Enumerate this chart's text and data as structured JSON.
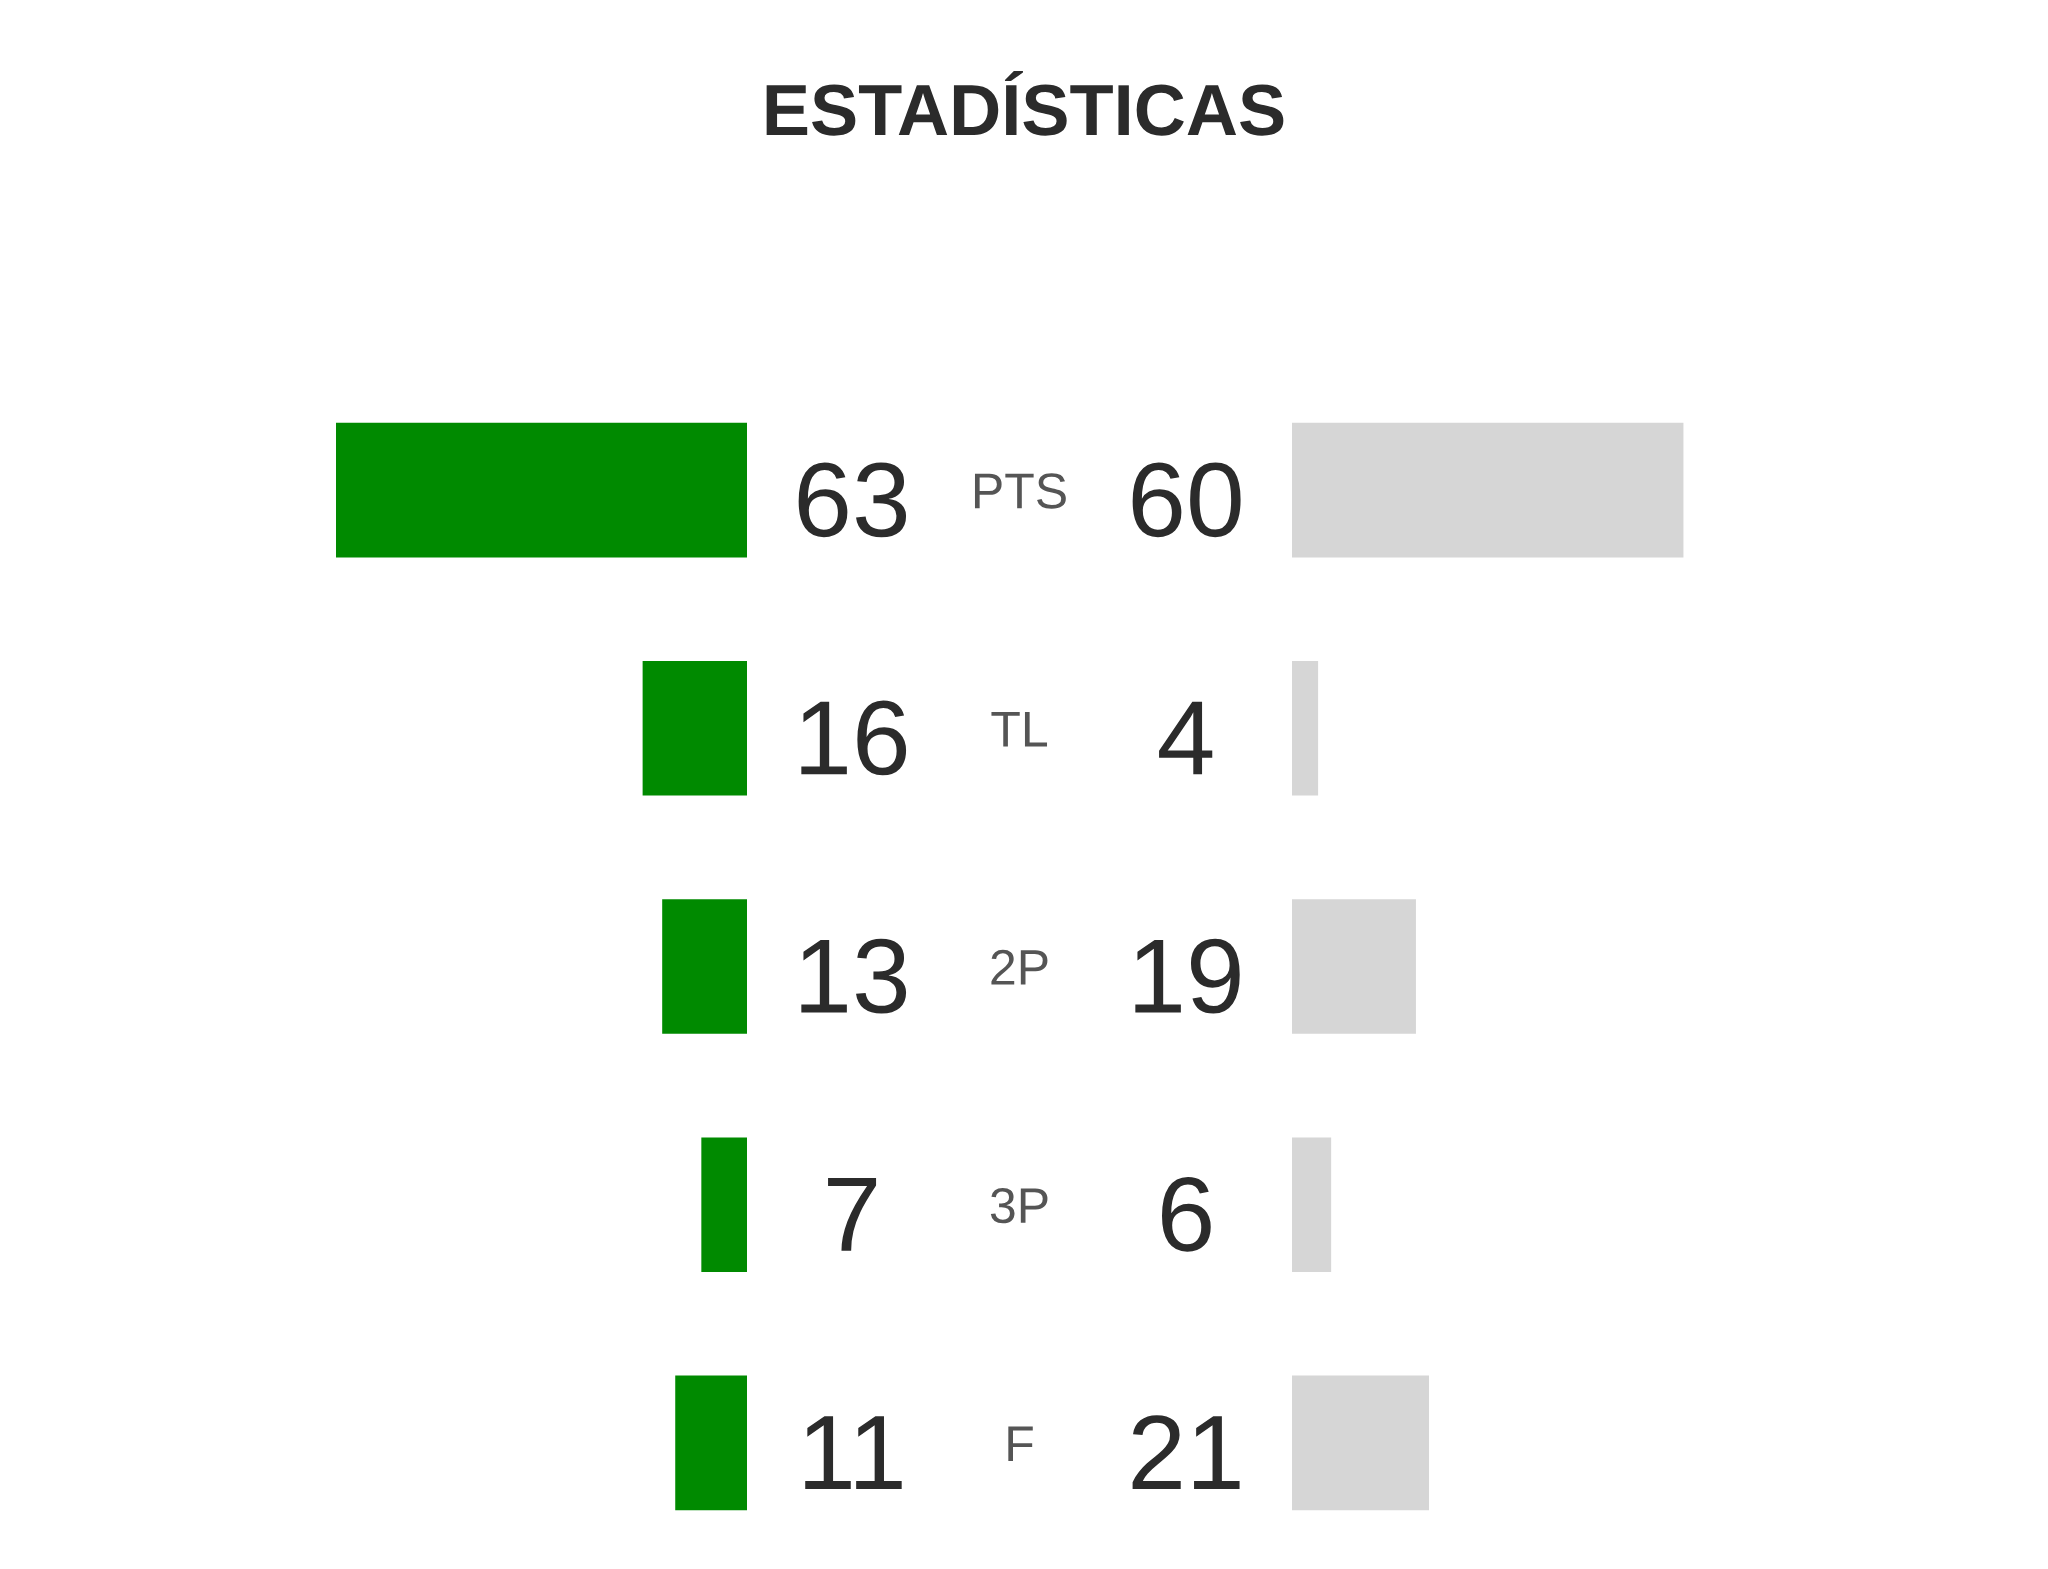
{
  "chart_data": [
    {
      "type": "bar",
      "title": "ESTADÍSTICAS",
      "orientation": "horizontal",
      "categories": [
        "PTS",
        "TL",
        "2P",
        "3P",
        "F"
      ],
      "values": [
        63,
        16,
        13,
        7,
        11
      ],
      "color": "#008a00",
      "data_labels": true,
      "tick_labels": "y"
    },
    {
      "type": "bar",
      "orientation": "horizontal",
      "categories": [
        null,
        null,
        null,
        null,
        null
      ],
      "values": [
        60,
        4,
        19,
        6,
        21
      ],
      "color": "#d6d6d6",
      "data_labels": true,
      "tick_labels": false
    }
  ]
}
